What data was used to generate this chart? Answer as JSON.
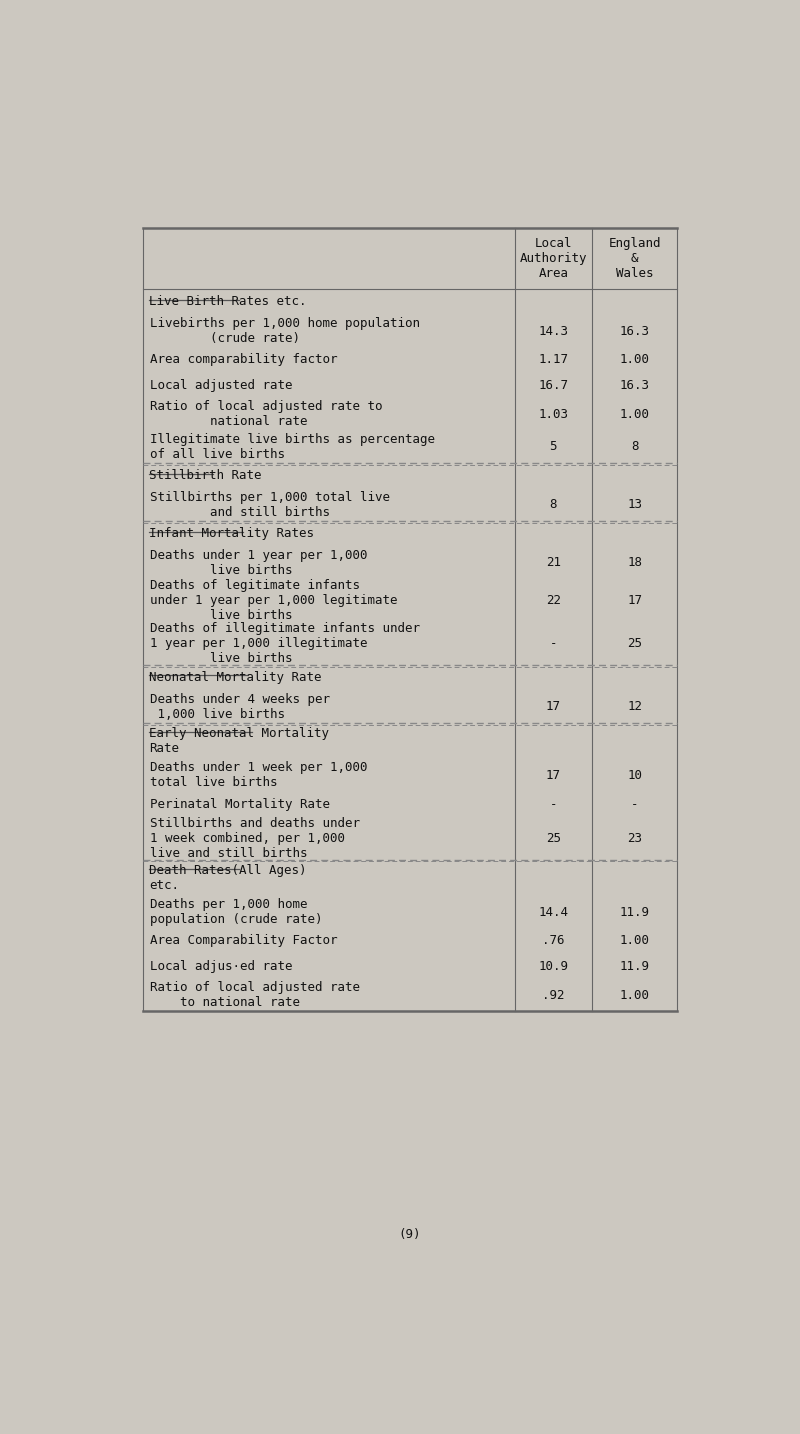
{
  "bg_color": "#ccc8c0",
  "header_col1": "Local\nAuthority\nArea",
  "header_col2": "England\n&\nWales",
  "sections": [
    {
      "title": "Live Birth Rates etc.",
      "underline": true,
      "rows": [
        {
          "label": "Livebirths per 1,000 home population\n        (crude rate)",
          "col1": "14.3",
          "col2": "16.3",
          "n_lines": 2
        },
        {
          "label": "Area comparability factor",
          "col1": "1.17",
          "col2": "1.00",
          "n_lines": 1
        },
        {
          "label": "Local adjusted rate",
          "col1": "16.7",
          "col2": "16.3",
          "n_lines": 1
        },
        {
          "label": "Ratio of local adjusted rate to\n        national rate",
          "col1": "1.03",
          "col2": "1.00",
          "n_lines": 2
        },
        {
          "label": "Illegitimate live births as percentage\nof all live births",
          "col1": "5",
          "col2": "8",
          "n_lines": 2
        }
      ]
    },
    {
      "title": "Stillbirth Rate",
      "underline": true,
      "rows": [
        {
          "label": "Stillbirths per 1,000 total live\n        and still births",
          "col1": "8",
          "col2": "13",
          "n_lines": 2
        }
      ]
    },
    {
      "title": "Infant Mortality Rates",
      "underline": true,
      "rows": [
        {
          "label": "Deaths under 1 year per 1,000\n        live births",
          "col1": "21",
          "col2": "18",
          "n_lines": 2
        },
        {
          "label": "Deaths of legitimate infants\nunder 1 year per 1,000 legitimate\n        live births",
          "col1": "22",
          "col2": "17",
          "n_lines": 3
        },
        {
          "label": "Deaths of illegitimate infants under\n1 year per 1,000 illegitimate\n        live births",
          "col1": "-",
          "col2": "25",
          "n_lines": 3
        }
      ]
    },
    {
      "title": "Neonatal Mortality Rate",
      "underline": true,
      "rows": [
        {
          "label": "Deaths under 4 weeks per\n 1,000 live births",
          "col1": "17",
          "col2": "12",
          "n_lines": 2
        }
      ]
    },
    {
      "title": "Early Neonatal Mortality\nRate",
      "underline": true,
      "rows": [
        {
          "label": "Deaths under 1 week per 1,000\ntotal live births",
          "col1": "17",
          "col2": "10",
          "n_lines": 2
        },
        {
          "label": "Perinatal Mortality Rate",
          "col1": "-",
          "col2": "-",
          "n_lines": 1
        },
        {
          "label": "Stillbirths and deaths under\n1 week combined, per 1,000\nlive and still births",
          "col1": "25",
          "col2": "23",
          "n_lines": 3
        }
      ]
    },
    {
      "title": "Death Rates(All Ages)\netc.",
      "underline": true,
      "rows": [
        {
          "label": "Deaths per 1,000 home\npopulation (crude rate)",
          "col1": "14.4",
          "col2": "11.9",
          "n_lines": 2
        },
        {
          "label": "Area Comparability Factor",
          "col1": ".76",
          "col2": "1.00",
          "n_lines": 1
        },
        {
          "label": "Local adjus·ed rate",
          "col1": "10.9",
          "col2": "11.9",
          "n_lines": 1
        },
        {
          "label": "Ratio of local adjusted rate\n    to national rate",
          "col1": ".92",
          "col2": "1.00",
          "n_lines": 2
        }
      ]
    }
  ],
  "footer": "(9)",
  "font_size": 9.0
}
